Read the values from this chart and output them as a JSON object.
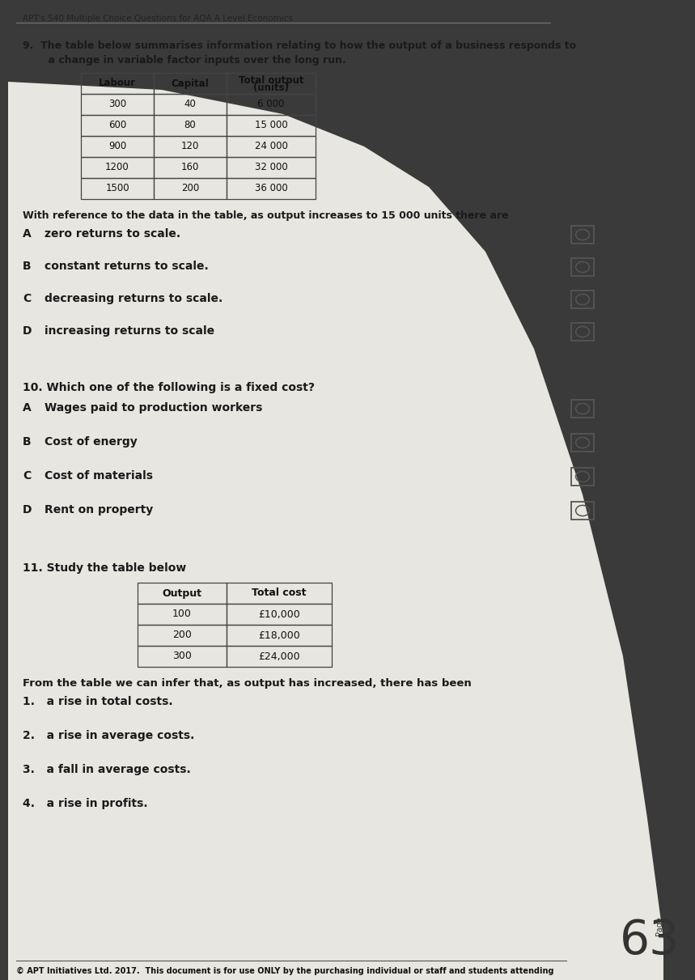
{
  "page_bg": "#3a3a3a",
  "paper_bg": "#e8e6e0",
  "header_text": "APT's 540 Multiple Choice Questions for AQA A Level Economics",
  "table9_headers": [
    "Labour",
    "Capital",
    "Total output\n(units)"
  ],
  "table9_data": [
    [
      "300",
      "40",
      "6 000"
    ],
    [
      "600",
      "80",
      "15 000"
    ],
    [
      "900",
      "120",
      "24 000"
    ],
    [
      "1200",
      "160",
      "32 000"
    ],
    [
      "1500",
      "200",
      "36 000"
    ]
  ],
  "q9_line1": "9.  The table below summarises information relating to how the output of a business responds to",
  "q9_line2": "    a change in variable factor inputs over the long run.",
  "q9_stem": "With reference to the data in the table, as output increases to 15 000 units there are",
  "q9_options": [
    [
      "A",
      "zero returns to scale."
    ],
    [
      "B",
      "constant returns to scale."
    ],
    [
      "C",
      "decreasing returns to scale."
    ],
    [
      "D",
      "increasing returns to scale"
    ]
  ],
  "q10_stem": "10. Which one of the following is a fixed cost?",
  "q10_options": [
    [
      "A",
      "Wages paid to production workers"
    ],
    [
      "B",
      "Cost of energy"
    ],
    [
      "C",
      "Cost of materials"
    ],
    [
      "D",
      "Rent on property"
    ]
  ],
  "q11_text": "11. Study the table below",
  "table11_headers": [
    "Output",
    "Total cost"
  ],
  "table11_data": [
    [
      "100",
      "£10,000"
    ],
    [
      "200",
      "£18,000"
    ],
    [
      "300",
      "£24,000"
    ]
  ],
  "q11_stem": "From the table we can infer that, as output has increased, there has been",
  "q11_options": [
    "1.   a rise in total costs.",
    "2.   a rise in average costs.",
    "3.   a fall in average costs.",
    "4.   a rise in profits."
  ],
  "footer_text": "© APT Initiatives Ltd. 2017.  This document is for use ONLY by the purchasing individual or staff and students attending",
  "box_color": "#555555",
  "text_color": "#1a1a1a",
  "header_color": "#222222"
}
